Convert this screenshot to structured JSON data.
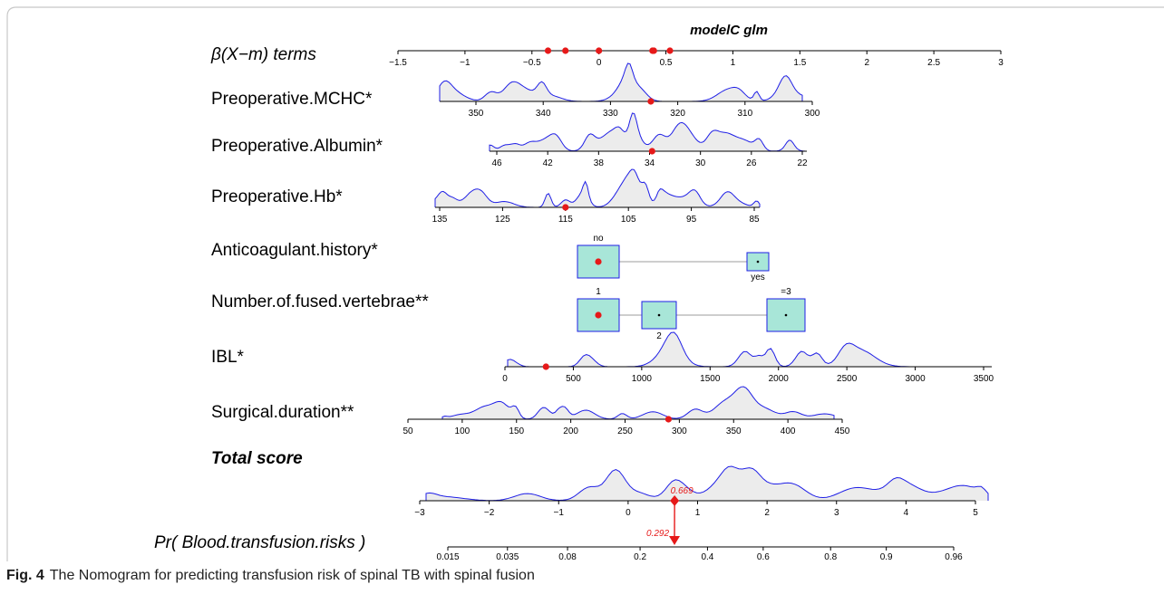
{
  "caption": {
    "figure_label": "Fig. 4",
    "text": "The Nomogram for predicting transfusion risk of spinal TB with spinal fusion"
  },
  "colors": {
    "density_line": "#1f1fe6",
    "density_fill": "#ececec",
    "point": "#e61919",
    "box_fill": "#a8e6d8",
    "box_stroke": "#1f1fe6",
    "connector": "#b0b0b0"
  },
  "chart_data": {
    "type": "nomogram",
    "title": "modelC glm",
    "header_label": "β(X−m) terms",
    "top_axis": {
      "ticks": [
        -1.5,
        -1,
        -0.5,
        0,
        0.5,
        1,
        1.5,
        2,
        2.5,
        3
      ],
      "tick_labels": [
        "−1.5",
        "−1",
        "−0.5",
        "0",
        "0.5",
        "1",
        "1.5",
        "2",
        "2.5",
        "3"
      ],
      "points": [
        -0.38,
        -0.25,
        0,
        0.4,
        0.41,
        0.53
      ]
    },
    "rows": [
      {
        "label": "Preoperative.MCHC*",
        "kind": "continuous",
        "ticks": [
          350,
          340,
          330,
          320,
          310,
          300
        ],
        "tick_labels": [
          "350",
          "340",
          "330",
          "320",
          "310",
          "300"
        ],
        "value": 324,
        "density_range": [
          353,
          302
        ]
      },
      {
        "label": "Preoperative.Albumin*",
        "kind": "continuous",
        "ticks": [
          46,
          42,
          38,
          34,
          30,
          26,
          22
        ],
        "tick_labels": [
          "46",
          "42",
          "38",
          "34",
          "30",
          "26",
          "22"
        ],
        "value": 33.8,
        "density_range": [
          46,
          22.5
        ]
      },
      {
        "label": "Preoperative.Hb*",
        "kind": "continuous",
        "ticks": [
          135,
          125,
          115,
          105,
          95,
          85
        ],
        "tick_labels": [
          "135",
          "125",
          "115",
          "105",
          "95",
          "85"
        ],
        "value": 115,
        "density_range": [
          135,
          85
        ]
      },
      {
        "label": "Anticoagulant.history*",
        "kind": "categorical",
        "categories": [
          "no",
          "yes"
        ],
        "selected": "no"
      },
      {
        "label": "Number.of.fused.vertebrae**",
        "kind": "categorical",
        "categories": [
          "1",
          "2",
          "=3"
        ],
        "selected": "1"
      },
      {
        "label": "IBL*",
        "kind": "continuous",
        "ticks": [
          0,
          500,
          1000,
          1500,
          2000,
          2500,
          3000,
          3500
        ],
        "tick_labels": [
          "0",
          "500",
          "1000",
          "1500",
          "2000",
          "2500",
          "3000",
          "3500"
        ],
        "value": 300,
        "density_range": [
          0,
          3500
        ]
      },
      {
        "label": "Surgical.duration**",
        "kind": "continuous",
        "ticks": [
          50,
          100,
          150,
          200,
          250,
          300,
          350,
          400,
          450
        ],
        "tick_labels": [
          "50",
          "100",
          "150",
          "200",
          "250",
          "300",
          "350",
          "400",
          "450"
        ],
        "value": 290,
        "density_range": [
          85,
          415
        ]
      }
    ],
    "total_score": {
      "label": "Total score",
      "ticks": [
        -3,
        -2,
        -1,
        0,
        1,
        2,
        3,
        4,
        5
      ],
      "tick_labels": [
        "−3",
        "−2",
        "−1",
        "0",
        "1",
        "2",
        "3",
        "4",
        "5"
      ],
      "value": 0.669,
      "value_label": "0.669"
    },
    "probability": {
      "label": "Pr( Blood.transfusion.risks )",
      "ticks": [
        0.015,
        0.035,
        0.08,
        0.2,
        0.4,
        0.6,
        0.8,
        0.9,
        0.96
      ],
      "tick_labels": [
        "0.015",
        "0.035",
        "0.08",
        "0.2",
        "0.4",
        "0.6",
        "0.8",
        "0.9",
        "0.96"
      ],
      "value": 0.292,
      "value_label": "0.292"
    }
  }
}
